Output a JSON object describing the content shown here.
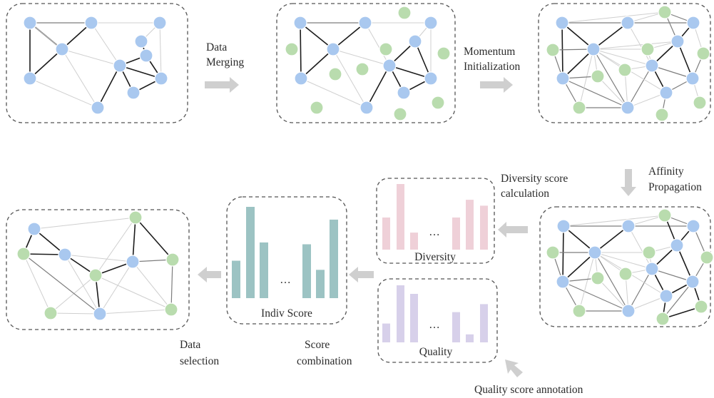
{
  "colors": {
    "blue_node": "#a9c8ef",
    "green_node": "#b9dcae",
    "node_stroke": "#ffffff",
    "edge_dark": "#1c1c1c",
    "edge_mid": "#7d7d7d",
    "edge_light": "#cfcfcf",
    "arrow": "#cfcfcf",
    "diversity_bar": "#efd0d8",
    "quality_bar": "#d7d0ea",
    "indiv_bar": "#9cc3c3"
  },
  "labels": {
    "data_merging": [
      "Data",
      "Merging"
    ],
    "momentum_init": [
      "Momentum",
      "Initialization"
    ],
    "affinity_prop": [
      "Affinity",
      "Propagation"
    ],
    "diversity_calc": [
      "Diversity score",
      "calculation"
    ],
    "quality_annot": "Quality score annotation",
    "score_combo": [
      "Score",
      "combination"
    ],
    "data_selection": [
      "Data",
      "selection"
    ],
    "diversity_caption": "Diversity",
    "quality_caption": "Quality",
    "indiv_caption": "Indiv Score",
    "ellipsis": "…"
  },
  "charts": {
    "diversity": [
      0.49,
      1.0,
      0.26,
      0.49,
      0.76,
      0.67
    ],
    "quality": [
      0.33,
      1.0,
      0.85,
      0.53,
      0.14,
      0.67
    ],
    "indiv": [
      0.41,
      1.0,
      0.61,
      0.59,
      0.31,
      0.86
    ]
  },
  "graphs": [
    {
      "nodes": [
        [
          "b",
          42,
          32
        ],
        [
          "b",
          128,
          32
        ],
        [
          "b",
          224,
          32
        ],
        [
          "b",
          87,
          69
        ],
        [
          "b",
          198,
          58
        ],
        [
          "b",
          205,
          78
        ],
        [
          "b",
          168,
          92
        ],
        [
          "b",
          42,
          110
        ],
        [
          "b",
          226,
          110
        ],
        [
          "b",
          187,
          130
        ],
        [
          "b",
          137,
          151
        ]
      ],
      "edges": [
        [
          0,
          3,
          "d"
        ],
        [
          1,
          3,
          "d"
        ],
        [
          3,
          7,
          "d"
        ],
        [
          0,
          7,
          "d"
        ],
        [
          0,
          1,
          "m"
        ],
        [
          1,
          2,
          "l"
        ],
        [
          2,
          4,
          "l"
        ],
        [
          2,
          8,
          "l"
        ],
        [
          4,
          5,
          "d"
        ],
        [
          5,
          6,
          "d"
        ],
        [
          6,
          8,
          "d"
        ],
        [
          5,
          8,
          "d"
        ],
        [
          6,
          9,
          "d"
        ],
        [
          8,
          9,
          "d"
        ],
        [
          6,
          10,
          "d"
        ],
        [
          3,
          10,
          "l"
        ],
        [
          7,
          10,
          "l"
        ],
        [
          3,
          6,
          "l"
        ],
        [
          1,
          6,
          "l"
        ],
        [
          0,
          3,
          "l"
        ]
      ]
    },
    {
      "nodes": [
        [
          "b",
          421,
          32
        ],
        [
          "b",
          512,
          32
        ],
        [
          "g",
          567,
          18
        ],
        [
          "b",
          604,
          32
        ],
        [
          "g",
          409,
          69
        ],
        [
          "b",
          467,
          69
        ],
        [
          "g",
          541,
          69
        ],
        [
          "b",
          582,
          58
        ],
        [
          "g",
          622,
          75
        ],
        [
          "g",
          470,
          104
        ],
        [
          "g",
          508,
          97
        ],
        [
          "b",
          546,
          92
        ],
        [
          "b",
          422,
          110
        ],
        [
          "b",
          604,
          110
        ],
        [
          "b",
          566,
          130
        ],
        [
          "g",
          444,
          151
        ],
        [
          "b",
          514,
          151
        ],
        [
          "g",
          561,
          160
        ],
        [
          "g",
          614,
          144
        ]
      ],
      "edges": [
        [
          0,
          5,
          "d"
        ],
        [
          1,
          5,
          "d"
        ],
        [
          5,
          12,
          "d"
        ],
        [
          0,
          12,
          "d"
        ],
        [
          0,
          1,
          "m"
        ],
        [
          1,
          3,
          "l"
        ],
        [
          3,
          7,
          "l"
        ],
        [
          3,
          13,
          "l"
        ],
        [
          7,
          11,
          "d"
        ],
        [
          11,
          13,
          "d"
        ],
        [
          7,
          13,
          "d"
        ],
        [
          11,
          14,
          "d"
        ],
        [
          13,
          14,
          "d"
        ],
        [
          11,
          16,
          "d"
        ],
        [
          5,
          16,
          "l"
        ],
        [
          12,
          16,
          "l"
        ],
        [
          5,
          11,
          "l"
        ],
        [
          1,
          11,
          "l"
        ]
      ]
    },
    {
      "nodes": [
        [
          "b",
          788,
          32
        ],
        [
          "b",
          880,
          32
        ],
        [
          "g",
          932,
          17
        ],
        [
          "b",
          972,
          32
        ],
        [
          "g",
          775,
          70
        ],
        [
          "b",
          832,
          69
        ],
        [
          "g",
          908,
          69
        ],
        [
          "b",
          950,
          58
        ],
        [
          "g",
          986,
          75
        ],
        [
          "g",
          838,
          107
        ],
        [
          "g",
          876,
          98
        ],
        [
          "b",
          914,
          92
        ],
        [
          "b",
          789,
          110
        ],
        [
          "b",
          971,
          110
        ],
        [
          "b",
          934,
          130
        ],
        [
          "g",
          812,
          151
        ],
        [
          "b",
          880,
          151
        ],
        [
          "g",
          928,
          161
        ],
        [
          "g",
          981,
          144
        ]
      ],
      "edges": [
        [
          0,
          5,
          "d"
        ],
        [
          1,
          5,
          "d"
        ],
        [
          5,
          12,
          "d"
        ],
        [
          0,
          12,
          "d"
        ],
        [
          0,
          1,
          "m"
        ],
        [
          1,
          3,
          "m"
        ],
        [
          2,
          7,
          "m"
        ],
        [
          3,
          7,
          "d"
        ],
        [
          7,
          11,
          "d"
        ],
        [
          11,
          13,
          "m"
        ],
        [
          7,
          13,
          "d"
        ],
        [
          11,
          14,
          "d"
        ],
        [
          13,
          14,
          "m"
        ],
        [
          11,
          16,
          "m"
        ],
        [
          5,
          16,
          "m"
        ],
        [
          12,
          16,
          "m"
        ],
        [
          5,
          11,
          "l"
        ],
        [
          1,
          11,
          "l"
        ],
        [
          4,
          5,
          "m"
        ],
        [
          5,
          6,
          "l"
        ],
        [
          5,
          9,
          "l"
        ],
        [
          5,
          10,
          "l"
        ],
        [
          5,
          15,
          "l"
        ],
        [
          5,
          14,
          "l"
        ],
        [
          5,
          7,
          "l"
        ],
        [
          6,
          7,
          "l"
        ],
        [
          9,
          12,
          "m"
        ],
        [
          9,
          16,
          "l"
        ],
        [
          10,
          16,
          "l"
        ],
        [
          14,
          17,
          "m"
        ],
        [
          13,
          18,
          "l"
        ],
        [
          8,
          13,
          "m"
        ],
        [
          3,
          8,
          "l"
        ],
        [
          2,
          3,
          "m"
        ],
        [
          0,
          2,
          "l"
        ],
        [
          15,
          16,
          "m"
        ],
        [
          12,
          15,
          "m"
        ],
        [
          4,
          12,
          "m"
        ],
        [
          6,
          11,
          "l"
        ],
        [
          10,
          11,
          "l"
        ],
        [
          14,
          16,
          "l"
        ],
        [
          1,
          2,
          "l"
        ]
      ]
    },
    {
      "nodes": [
        [
          "b",
          790,
          317
        ],
        [
          "b",
          881,
          317
        ],
        [
          "g",
          932,
          302
        ],
        [
          "b",
          972,
          317
        ],
        [
          "g",
          775,
          354
        ],
        [
          "b",
          834,
          354
        ],
        [
          "g",
          910,
          354
        ],
        [
          "b",
          949,
          344
        ],
        [
          "g",
          991,
          361
        ],
        [
          "g",
          838,
          390
        ],
        [
          "g",
          877,
          384
        ],
        [
          "b",
          914,
          377
        ],
        [
          "b",
          789,
          395
        ],
        [
          "b",
          971,
          395
        ],
        [
          "b",
          934,
          415
        ],
        [
          "g",
          812,
          436
        ],
        [
          "b",
          881,
          436
        ],
        [
          "g",
          929,
          447
        ],
        [
          "g",
          983,
          430
        ]
      ],
      "edges": [
        [
          0,
          5,
          "d"
        ],
        [
          1,
          5,
          "d"
        ],
        [
          5,
          12,
          "d"
        ],
        [
          0,
          12,
          "d"
        ],
        [
          0,
          1,
          "m"
        ],
        [
          1,
          3,
          "m"
        ],
        [
          2,
          7,
          "d"
        ],
        [
          3,
          7,
          "d"
        ],
        [
          7,
          11,
          "d"
        ],
        [
          11,
          13,
          "m"
        ],
        [
          7,
          13,
          "d"
        ],
        [
          11,
          14,
          "d"
        ],
        [
          13,
          14,
          "d"
        ],
        [
          11,
          16,
          "m"
        ],
        [
          5,
          16,
          "m"
        ],
        [
          12,
          16,
          "m"
        ],
        [
          5,
          11,
          "l"
        ],
        [
          1,
          11,
          "l"
        ],
        [
          4,
          5,
          "m"
        ],
        [
          5,
          6,
          "l"
        ],
        [
          5,
          9,
          "l"
        ],
        [
          5,
          10,
          "l"
        ],
        [
          5,
          15,
          "l"
        ],
        [
          5,
          14,
          "l"
        ],
        [
          6,
          7,
          "l"
        ],
        [
          9,
          12,
          "m"
        ],
        [
          9,
          16,
          "l"
        ],
        [
          10,
          16,
          "l"
        ],
        [
          14,
          17,
          "d"
        ],
        [
          13,
          18,
          "d"
        ],
        [
          8,
          13,
          "m"
        ],
        [
          3,
          8,
          "m"
        ],
        [
          2,
          3,
          "m"
        ],
        [
          0,
          2,
          "l"
        ],
        [
          15,
          16,
          "m"
        ],
        [
          12,
          15,
          "m"
        ],
        [
          4,
          12,
          "m"
        ],
        [
          6,
          11,
          "l"
        ],
        [
          10,
          11,
          "l"
        ],
        [
          14,
          16,
          "l"
        ],
        [
          1,
          2,
          "l"
        ],
        [
          17,
          18,
          "d"
        ],
        [
          13,
          17,
          "m"
        ]
      ]
    },
    {
      "nodes": [
        [
          "b",
          48,
          321
        ],
        [
          "g",
          190,
          305
        ],
        [
          "g",
          33,
          356
        ],
        [
          "b",
          91,
          357
        ],
        [
          "b",
          186,
          367
        ],
        [
          "g",
          242,
          364
        ],
        [
          "g",
          134,
          386
        ],
        [
          "g",
          71,
          439
        ],
        [
          "b",
          140,
          440
        ],
        [
          "g",
          240,
          434
        ]
      ],
      "edges": [
        [
          0,
          3,
          "d"
        ],
        [
          0,
          2,
          "d"
        ],
        [
          2,
          3,
          "d"
        ],
        [
          1,
          4,
          "d"
        ],
        [
          1,
          5,
          "d"
        ],
        [
          4,
          5,
          "m"
        ],
        [
          4,
          6,
          "d"
        ],
        [
          3,
          6,
          "d"
        ],
        [
          6,
          8,
          "d"
        ],
        [
          6,
          9,
          "l"
        ],
        [
          4,
          9,
          "l"
        ],
        [
          5,
          9,
          "m"
        ],
        [
          6,
          7,
          "l"
        ],
        [
          2,
          7,
          "l"
        ],
        [
          7,
          8,
          "l"
        ],
        [
          2,
          8,
          "m"
        ],
        [
          3,
          8,
          "l"
        ],
        [
          3,
          4,
          "l"
        ],
        [
          0,
          1,
          "l"
        ],
        [
          1,
          6,
          "l"
        ],
        [
          4,
          8,
          "l"
        ],
        [
          8,
          9,
          "l"
        ]
      ]
    }
  ]
}
